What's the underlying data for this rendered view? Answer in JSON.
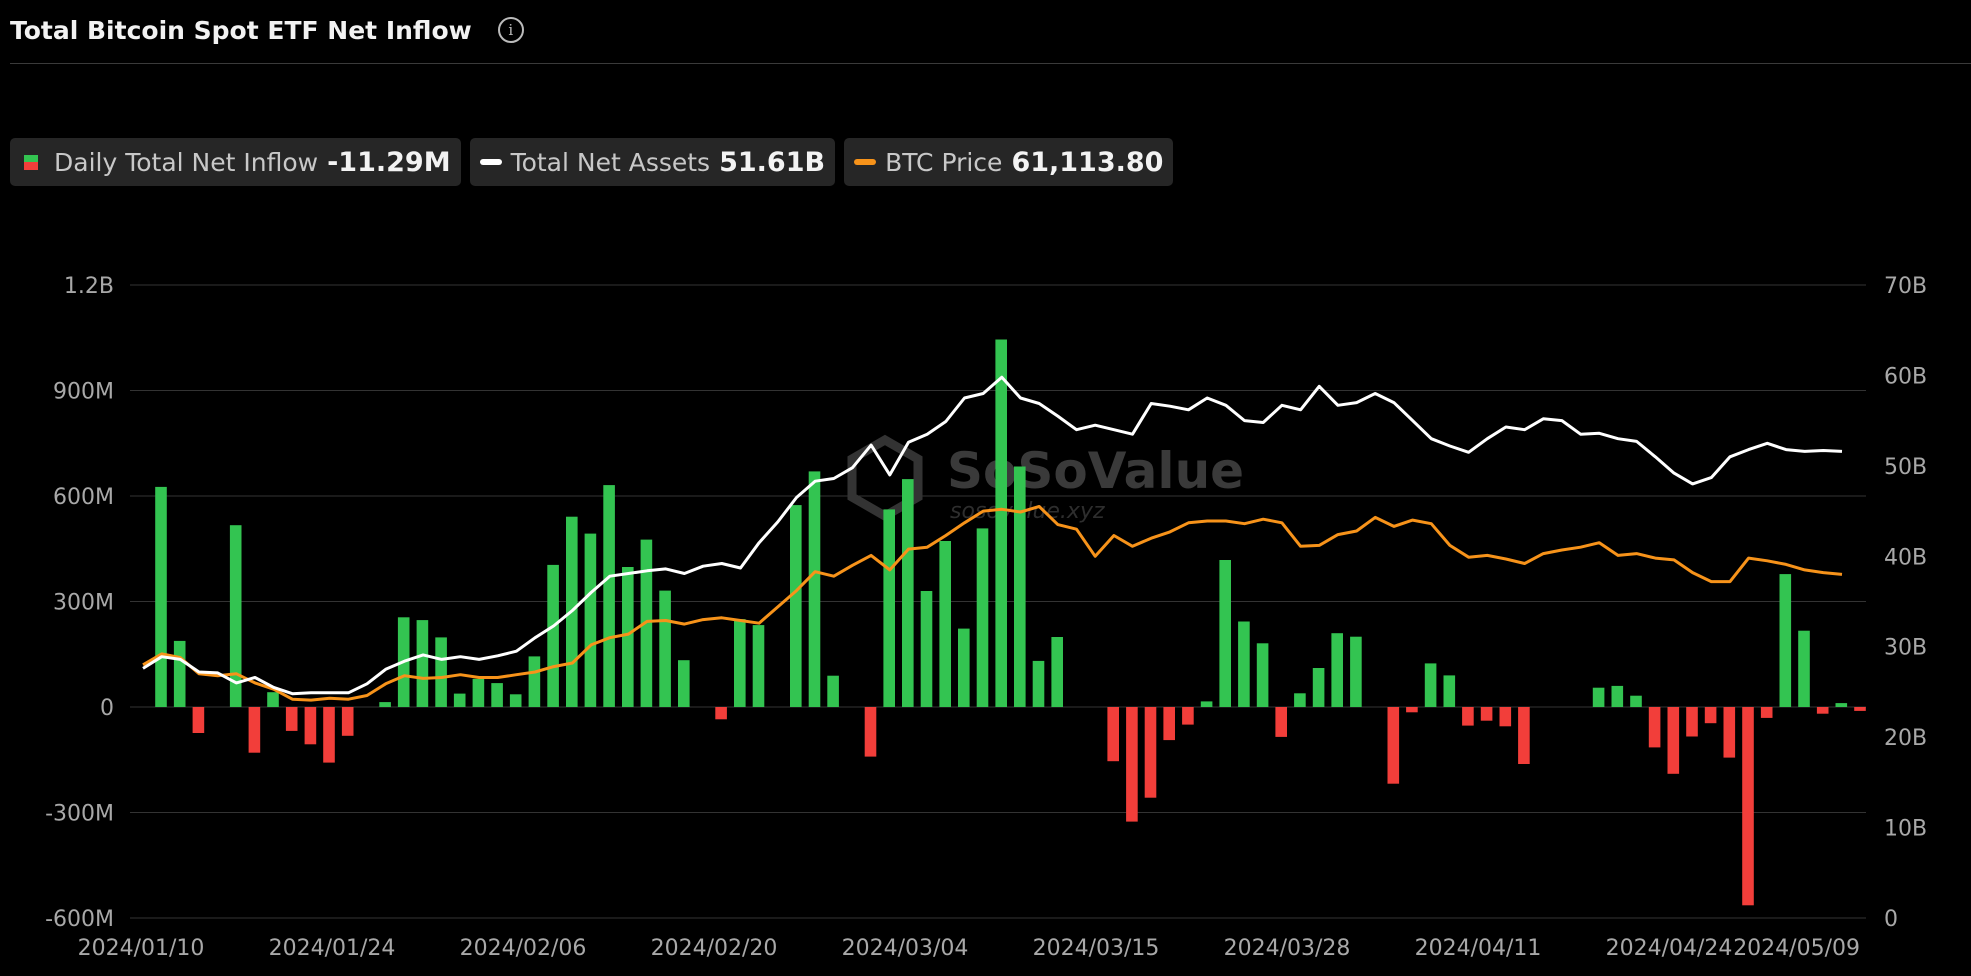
{
  "header": {
    "title": "Total Bitcoin Spot ETF Net Inflow",
    "info_icon": "info-circle-icon"
  },
  "legend": [
    {
      "label": "Daily Total Net Inflow",
      "value": "-11.29M",
      "colors": [
        "#33c451",
        "#f23e3a"
      ]
    },
    {
      "label": "Total Net Assets",
      "value": "51.61B",
      "color": "#ffffff"
    },
    {
      "label": "BTC Price",
      "value": "61,113.80",
      "color": "#f7931a"
    }
  ],
  "watermark": {
    "brand": "SoSoValue",
    "site": "sosovalue.xyz"
  },
  "chart_data": {
    "type": "bar",
    "left_axis": {
      "ticks": [
        "1.2B",
        "900M",
        "600M",
        "300M",
        "0",
        "-300M",
        "-600M"
      ],
      "range": [
        -600,
        1200
      ],
      "unit": "M"
    },
    "right_axis": {
      "ticks": [
        "70B",
        "60B",
        "50B",
        "40B",
        "30B",
        "20B",
        "10B",
        "0"
      ],
      "range": [
        0,
        70
      ],
      "unit": "B"
    },
    "x_labels": [
      "2024/01/10",
      "2024/01/24",
      "2024/02/06",
      "2024/02/20",
      "2024/03/04",
      "2024/03/15",
      "2024/03/28",
      "2024/04/11",
      "2024/04/24",
      "2024/05/09"
    ],
    "grid": true,
    "colors": {
      "positive": "#33c451",
      "negative": "#f23e3a",
      "net_assets": "#ffffff",
      "btc_price": "#f7931a"
    },
    "series": [
      {
        "name": "Daily Total Net Inflow",
        "axis": "left",
        "values": [
          626,
          188,
          -74,
          0,
          517,
          -130,
          42,
          -68,
          -106,
          -158,
          -82,
          0,
          14,
          255,
          247,
          198,
          38,
          80,
          68,
          36,
          144,
          404,
          541,
          493,
          631,
          398,
          476,
          331,
          133,
          0,
          -35,
          250,
          233,
          0,
          574,
          670,
          89,
          0,
          -141,
          562,
          648,
          330,
          472,
          223,
          508,
          1045,
          684,
          131,
          199,
          0,
          0,
          -154,
          -326,
          -258,
          -94,
          -50,
          16,
          418,
          243,
          181,
          -85,
          39,
          111,
          210,
          200,
          0,
          -218,
          -15,
          124,
          90,
          -53,
          -39,
          -55,
          -162,
          0,
          0,
          0,
          55,
          60,
          32,
          -115,
          -190,
          -84,
          -46,
          -144,
          -564,
          -31,
          378,
          217,
          -19,
          11,
          -11
        ]
      },
      {
        "name": "Total Net Assets",
        "axis": "right",
        "values": [
          27.6,
          28.9,
          28.6,
          27.2,
          27.1,
          26.0,
          26.6,
          25.5,
          24.8,
          24.9,
          24.9,
          24.9,
          25.9,
          27.5,
          28.4,
          29.1,
          28.6,
          28.9,
          28.6,
          29.0,
          29.5,
          31.0,
          32.3,
          34.0,
          36.0,
          37.8,
          38.1,
          38.4,
          38.6,
          38.1,
          38.9,
          39.2,
          38.7,
          41.5,
          43.8,
          46.5,
          48.3,
          48.6,
          49.8,
          52.3,
          49.0,
          52.6,
          53.5,
          54.9,
          57.5,
          58.0,
          59.8,
          57.5,
          56.9,
          55.5,
          54.0,
          54.5,
          54.0,
          53.5,
          56.9,
          56.6,
          56.2,
          57.5,
          56.7,
          55.0,
          54.8,
          56.7,
          56.2,
          58.8,
          56.7,
          57.0,
          58.0,
          57.0,
          55.0,
          53.0,
          52.2,
          51.5,
          53.0,
          54.3,
          54.0,
          55.2,
          55.0,
          53.5,
          53.6,
          53.0,
          52.7,
          51.0,
          49.2,
          48.0,
          48.7,
          51.0,
          51.8,
          52.5,
          51.8,
          51.6,
          51.7,
          51.6
        ]
      },
      {
        "name": "BTC Price",
        "axis": "right",
        "values": [
          28.0,
          29.2,
          28.8,
          27.0,
          26.8,
          27.0,
          26.0,
          25.3,
          24.2,
          24.1,
          24.3,
          24.2,
          24.6,
          25.9,
          26.8,
          26.5,
          26.6,
          26.9,
          26.6,
          26.6,
          26.9,
          27.2,
          27.8,
          28.2,
          30.2,
          31.0,
          31.4,
          32.8,
          32.9,
          32.5,
          33.0,
          33.2,
          32.9,
          32.6,
          34.4,
          36.2,
          38.3,
          37.8,
          39.0,
          40.1,
          38.5,
          40.8,
          41.0,
          42.3,
          43.7,
          45.0,
          45.2,
          44.9,
          45.5,
          43.5,
          43.0,
          40.0,
          42.3,
          41.1,
          42.0,
          42.7,
          43.7,
          43.9,
          43.9,
          43.6,
          44.1,
          43.7,
          41.1,
          41.2,
          42.4,
          42.8,
          44.3,
          43.3,
          44.0,
          43.6,
          41.2,
          39.9,
          40.1,
          39.7,
          39.2,
          40.3,
          40.7,
          41.0,
          41.5,
          40.1,
          40.3,
          39.8,
          39.6,
          38.2,
          37.2,
          37.2,
          39.8,
          39.5,
          39.1,
          38.5,
          38.2,
          38.0
        ]
      }
    ]
  }
}
